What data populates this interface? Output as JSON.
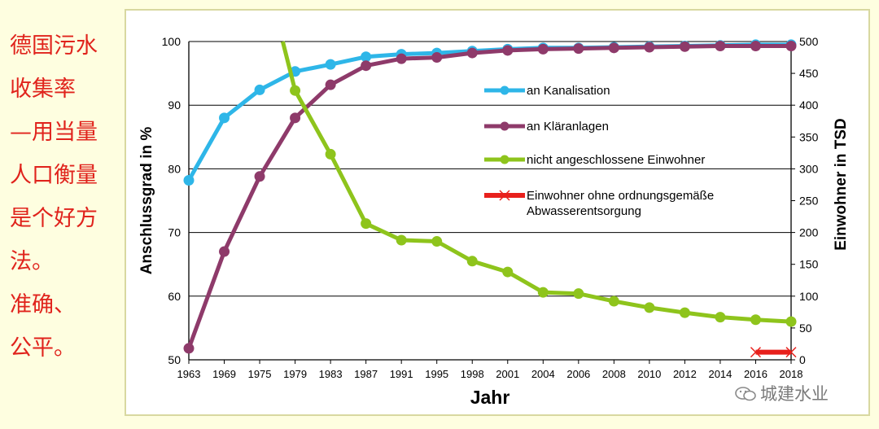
{
  "side_text": {
    "lines": [
      "德国污水",
      "收集率",
      "—用当量",
      "人口衡量",
      "是个好方",
      "法。",
      "准确、",
      "公平。"
    ],
    "color": "#e0231c"
  },
  "watermark": {
    "text": "城建水业"
  },
  "chart_data": {
    "type": "line",
    "xlabel": "Jahr",
    "ylabel_left": "Anschlussgrad in %",
    "ylabel_right": "Einwohner in TSD",
    "categories": [
      "1963",
      "1969",
      "1975",
      "1979",
      "1983",
      "1987",
      "1991",
      "1995",
      "1998",
      "2001",
      "2004",
      "2006",
      "2008",
      "2010",
      "2012",
      "2014",
      "2016",
      "2018"
    ],
    "ylim_left": [
      50,
      100
    ],
    "yticks_left": [
      "50",
      "60",
      "70",
      "80",
      "90",
      "100"
    ],
    "ylim_right": [
      0,
      500
    ],
    "yticks_right": [
      "0",
      "50",
      "100",
      "150",
      "200",
      "250",
      "300",
      "350",
      "400",
      "450",
      "500"
    ],
    "grid": true,
    "legend_position": "right-center",
    "series": [
      {
        "name": "an Kanalisation",
        "axis": "left",
        "color": "#2eb6e8",
        "values": [
          78.2,
          88.0,
          92.4,
          95.3,
          96.4,
          97.6,
          98.0,
          98.2,
          98.5,
          98.8,
          99.0,
          99.0,
          99.1,
          99.2,
          99.3,
          99.4,
          99.5,
          99.5
        ]
      },
      {
        "name": "an Kläranlagen",
        "axis": "left",
        "color": "#8e3a6a",
        "values": [
          51.8,
          67.0,
          78.8,
          88.0,
          93.2,
          96.2,
          97.3,
          97.5,
          98.2,
          98.6,
          98.8,
          98.9,
          99.0,
          99.1,
          99.2,
          99.3,
          99.3,
          99.3
        ]
      },
      {
        "name": "nicht angeschlossene Einwohner",
        "axis": "right",
        "color": "#8ec41c",
        "start_value": 500,
        "values": [
          null,
          null,
          null,
          423,
          323,
          214,
          188,
          186,
          155,
          138,
          106,
          104,
          92,
          82,
          74,
          67,
          63,
          60
        ]
      },
      {
        "name": "Einwohner ohne ordnungsgemäße Abwasserentsorgung",
        "axis": "right",
        "color": "#e8201c",
        "values": [
          null,
          null,
          null,
          null,
          null,
          null,
          null,
          null,
          null,
          null,
          null,
          null,
          null,
          null,
          null,
          null,
          12,
          12
        ]
      }
    ]
  }
}
